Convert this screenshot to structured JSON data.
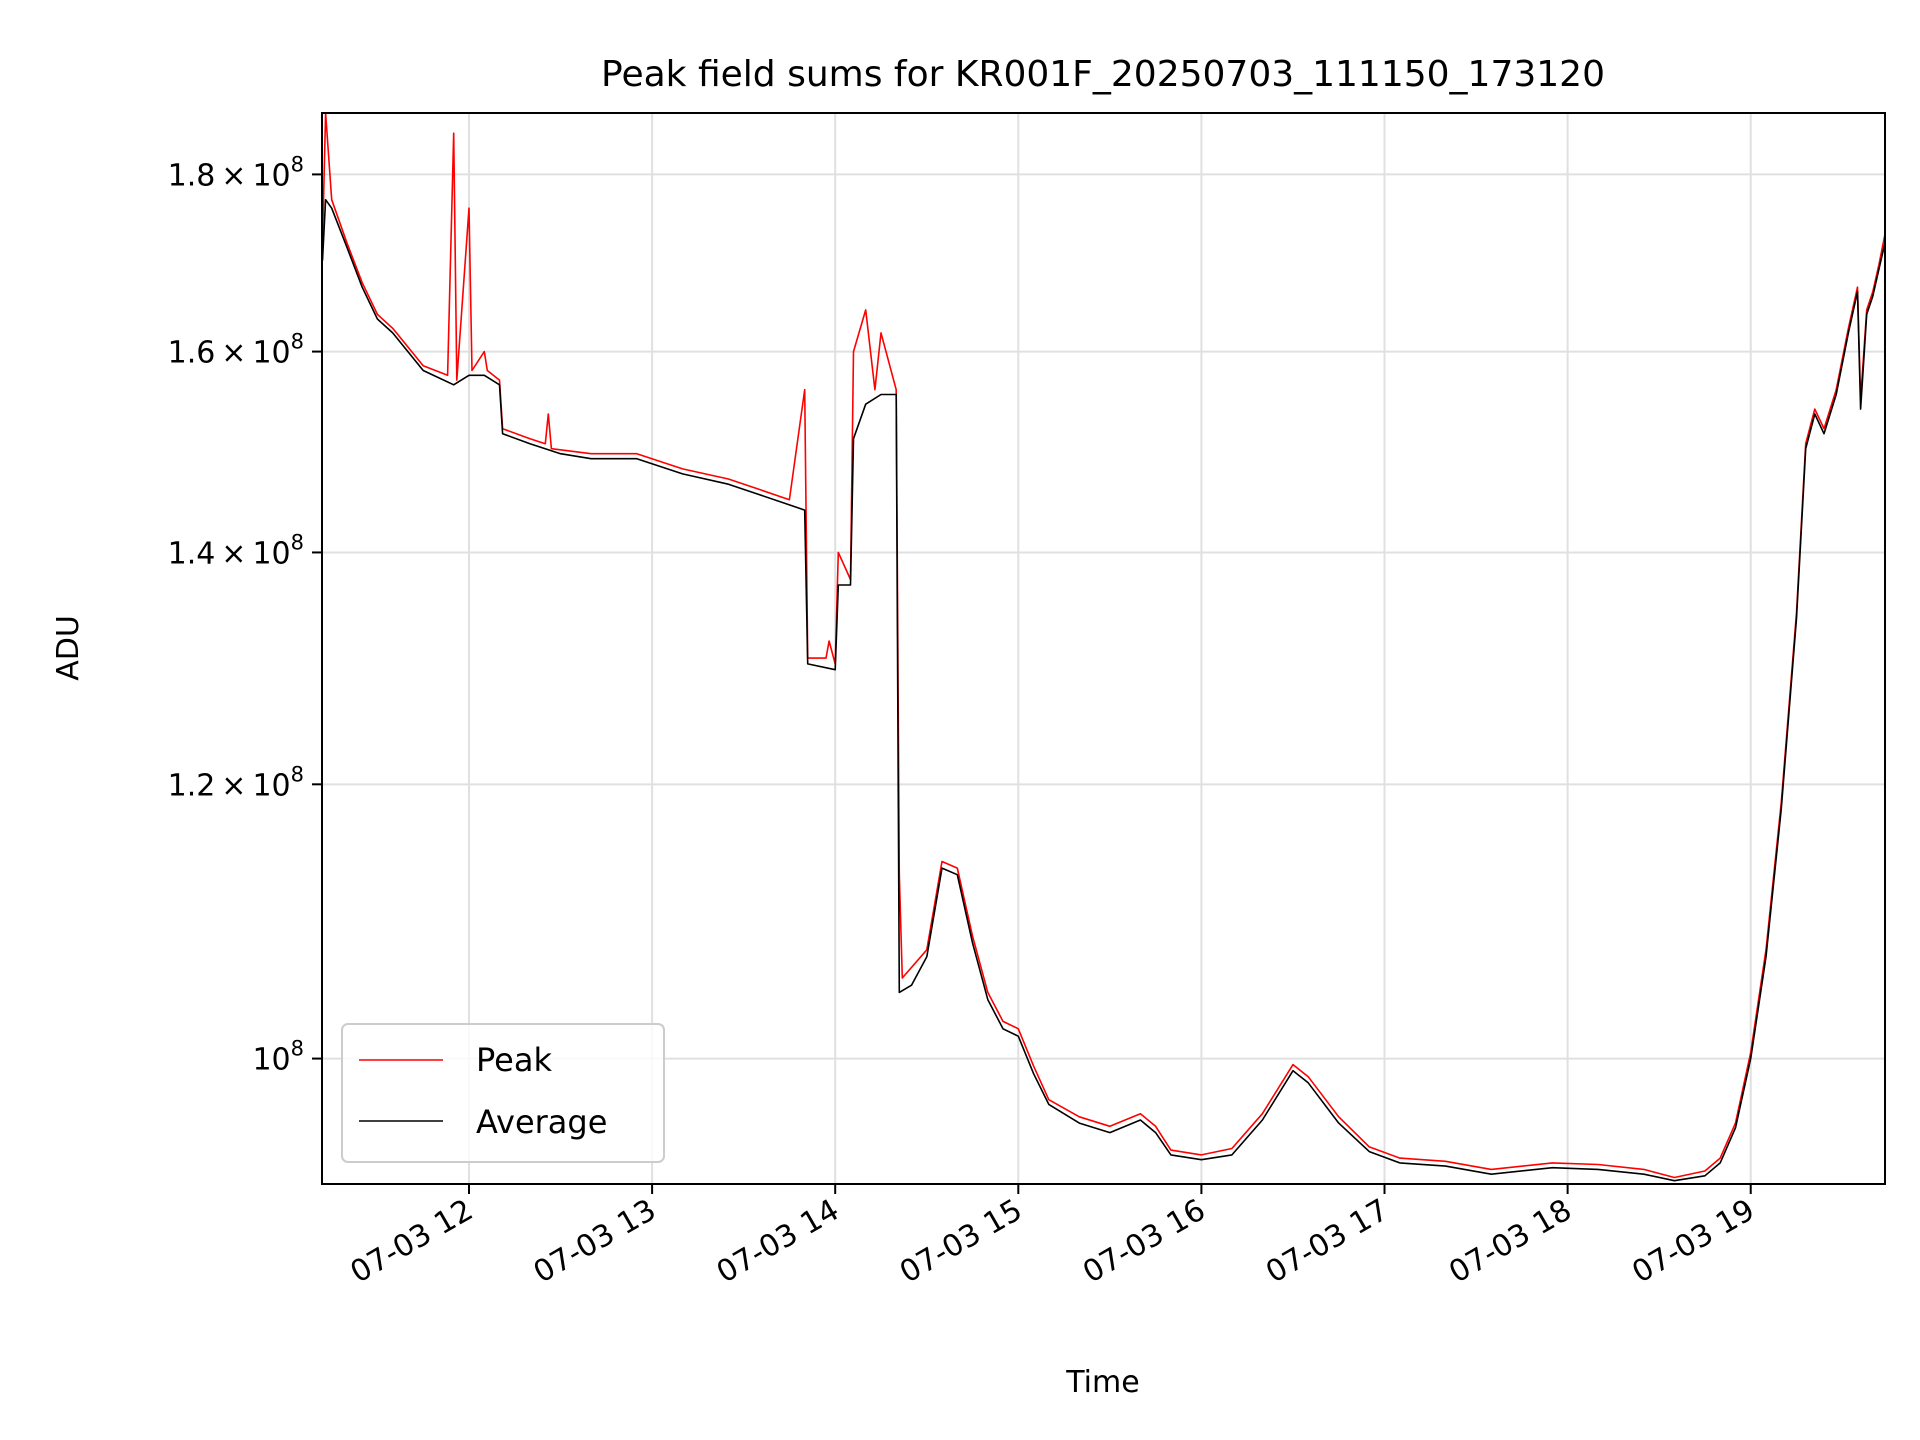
{
  "chart_data": {
    "type": "line",
    "title": "Peak field sums for KR001F_20250703_111150_173120",
    "xlabel": "Time",
    "ylabel": "ADU",
    "yscale": "log",
    "ylim": [
      92000000,
      187500000
    ],
    "xlim": [
      "07-03 11:11:50",
      "07-03 19:44:00"
    ],
    "grid": true,
    "legend_position": "lower-left",
    "x_ticks": [
      "07-03 12",
      "07-03 13",
      "07-03 14",
      "07-03 15",
      "07-03 16",
      "07-03 17",
      "07-03 18",
      "07-03 19"
    ],
    "y_ticks": [
      {
        "value": 100000000,
        "mantissa": "",
        "exponent": "8"
      },
      {
        "value": 120000000,
        "mantissa": "1.2",
        "exponent": "8"
      },
      {
        "value": 140000000,
        "mantissa": "1.4",
        "exponent": "8"
      },
      {
        "value": 160000000,
        "mantissa": "1.6",
        "exponent": "8"
      },
      {
        "value": 180000000,
        "mantissa": "1.8",
        "exponent": "8"
      }
    ],
    "series": [
      {
        "name": "Average",
        "color": "#000000",
        "points": [
          [
            "07-03 11:12",
            170
          ],
          [
            "07-03 11:13",
            177
          ],
          [
            "07-03 11:15",
            176
          ],
          [
            "07-03 11:20",
            171.5
          ],
          [
            "07-03 11:25",
            167
          ],
          [
            "07-03 11:30",
            163.5
          ],
          [
            "07-03 11:35",
            162
          ],
          [
            "07-03 11:45",
            158
          ],
          [
            "07-03 11:55",
            156.5
          ],
          [
            "07-03 12:00",
            157.5
          ],
          [
            "07-03 12:05",
            157.5
          ],
          [
            "07-03 12:10",
            156.5
          ],
          [
            "07-03 12:11",
            151.5
          ],
          [
            "07-03 12:20",
            150.5
          ],
          [
            "07-03 12:30",
            149.5
          ],
          [
            "07-03 12:40",
            149
          ],
          [
            "07-03 12:55",
            149
          ],
          [
            "07-03 13:10",
            147.5
          ],
          [
            "07-03 13:25",
            146.5
          ],
          [
            "07-03 13:35",
            145.5
          ],
          [
            "07-03 13:45",
            144.5
          ],
          [
            "07-03 13:50",
            144
          ],
          [
            "07-03 13:51",
            130
          ],
          [
            "07-03 14:00",
            129.5
          ],
          [
            "07-03 14:01",
            137
          ],
          [
            "07-03 14:05",
            137
          ],
          [
            "07-03 14:06",
            151
          ],
          [
            "07-03 14:10",
            154.5
          ],
          [
            "07-03 14:15",
            155.5
          ],
          [
            "07-03 14:20",
            155.5
          ],
          [
            "07-03 14:21",
            104.5
          ],
          [
            "07-03 14:25",
            105
          ],
          [
            "07-03 14:30",
            107
          ],
          [
            "07-03 14:35",
            113.5
          ],
          [
            "07-03 14:40",
            113
          ],
          [
            "07-03 14:45",
            108
          ],
          [
            "07-03 14:50",
            104
          ],
          [
            "07-03 14:55",
            102
          ],
          [
            "07-03 15:00",
            101.5
          ],
          [
            "07-03 15:05",
            99
          ],
          [
            "07-03 15:10",
            97
          ],
          [
            "07-03 15:20",
            95.8
          ],
          [
            "07-03 15:30",
            95.2
          ],
          [
            "07-03 15:40",
            96
          ],
          [
            "07-03 15:45",
            95.2
          ],
          [
            "07-03 15:50",
            93.8
          ],
          [
            "07-03 16:00",
            93.5
          ],
          [
            "07-03 16:10",
            93.8
          ],
          [
            "07-03 16:20",
            96
          ],
          [
            "07-03 16:30",
            99.2
          ],
          [
            "07-03 16:35",
            98.4
          ],
          [
            "07-03 16:45",
            95.8
          ],
          [
            "07-03 16:55",
            94
          ],
          [
            "07-03 17:05",
            93.3
          ],
          [
            "07-03 17:20",
            93.1
          ],
          [
            "07-03 17:35",
            92.6
          ],
          [
            "07-03 17:55",
            93
          ],
          [
            "07-03 18:10",
            92.9
          ],
          [
            "07-03 18:25",
            92.6
          ],
          [
            "07-03 18:35",
            92.2
          ],
          [
            "07-03 18:45",
            92.5
          ],
          [
            "07-03 18:50",
            93.3
          ],
          [
            "07-03 18:55",
            95.5
          ],
          [
            "07-03 19:00",
            100
          ],
          [
            "07-03 19:05",
            107
          ],
          [
            "07-03 19:10",
            118
          ],
          [
            "07-03 19:15",
            134
          ],
          [
            "07-03 19:18",
            150
          ],
          [
            "07-03 19:21",
            153.5
          ],
          [
            "07-03 19:24",
            151.5
          ],
          [
            "07-03 19:28",
            155.5
          ],
          [
            "07-03 19:32",
            162
          ],
          [
            "07-03 19:35",
            166.5
          ],
          [
            "07-03 19:36",
            154
          ],
          [
            "07-03 19:38",
            164
          ],
          [
            "07-03 19:40",
            166
          ],
          [
            "07-03 19:42",
            169
          ],
          [
            "07-03 19:44",
            172
          ]
        ]
      },
      {
        "name": "Peak",
        "color": "#ff0000",
        "points": [
          [
            "07-03 11:12",
            172
          ],
          [
            "07-03 11:13",
            187.5
          ],
          [
            "07-03 11:15",
            177
          ],
          [
            "07-03 11:20",
            172
          ],
          [
            "07-03 11:25",
            167.5
          ],
          [
            "07-03 11:30",
            164
          ],
          [
            "07-03 11:35",
            162.5
          ],
          [
            "07-03 11:45",
            158.5
          ],
          [
            "07-03 11:53",
            157.5
          ],
          [
            "07-03 11:55",
            185
          ],
          [
            "07-03 11:56",
            157
          ],
          [
            "07-03 12:00",
            176
          ],
          [
            "07-03 12:01",
            158
          ],
          [
            "07-03 12:05",
            160
          ],
          [
            "07-03 12:06",
            158
          ],
          [
            "07-03 12:10",
            157
          ],
          [
            "07-03 12:11",
            152
          ],
          [
            "07-03 12:20",
            151
          ],
          [
            "07-03 12:25",
            150.5
          ],
          [
            "07-03 12:26",
            153.5
          ],
          [
            "07-03 12:27",
            150
          ],
          [
            "07-03 12:40",
            149.5
          ],
          [
            "07-03 12:55",
            149.5
          ],
          [
            "07-03 13:10",
            148
          ],
          [
            "07-03 13:25",
            147
          ],
          [
            "07-03 13:35",
            146
          ],
          [
            "07-03 13:45",
            145
          ],
          [
            "07-03 13:50",
            156
          ],
          [
            "07-03 13:51",
            130.5
          ],
          [
            "07-03 13:57",
            130.5
          ],
          [
            "07-03 13:58",
            132
          ],
          [
            "07-03 14:00",
            130
          ],
          [
            "07-03 14:01",
            140
          ],
          [
            "07-03 14:05",
            137.5
          ],
          [
            "07-03 14:06",
            160
          ],
          [
            "07-03 14:10",
            164.5
          ],
          [
            "07-03 14:13",
            156
          ],
          [
            "07-03 14:15",
            162
          ],
          [
            "07-03 14:20",
            156
          ],
          [
            "07-03 14:21",
            113
          ],
          [
            "07-03 14:22",
            105.5
          ],
          [
            "07-03 14:30",
            107.5
          ],
          [
            "07-03 14:35",
            114
          ],
          [
            "07-03 14:40",
            113.5
          ],
          [
            "07-03 14:45",
            108.5
          ],
          [
            "07-03 14:50",
            104.5
          ],
          [
            "07-03 14:55",
            102.5
          ],
          [
            "07-03 15:00",
            102
          ],
          [
            "07-03 15:05",
            99.5
          ],
          [
            "07-03 15:10",
            97.3
          ],
          [
            "07-03 15:20",
            96.2
          ],
          [
            "07-03 15:30",
            95.6
          ],
          [
            "07-03 15:40",
            96.4
          ],
          [
            "07-03 15:45",
            95.6
          ],
          [
            "07-03 15:50",
            94.1
          ],
          [
            "07-03 16:00",
            93.8
          ],
          [
            "07-03 16:10",
            94.2
          ],
          [
            "07-03 16:20",
            96.4
          ],
          [
            "07-03 16:30",
            99.6
          ],
          [
            "07-03 16:35",
            98.8
          ],
          [
            "07-03 16:45",
            96.2
          ],
          [
            "07-03 16:55",
            94.3
          ],
          [
            "07-03 17:05",
            93.6
          ],
          [
            "07-03 17:20",
            93.4
          ],
          [
            "07-03 17:35",
            92.9
          ],
          [
            "07-03 17:55",
            93.3
          ],
          [
            "07-03 18:10",
            93.2
          ],
          [
            "07-03 18:25",
            92.9
          ],
          [
            "07-03 18:35",
            92.4
          ],
          [
            "07-03 18:45",
            92.8
          ],
          [
            "07-03 18:50",
            93.6
          ],
          [
            "07-03 18:55",
            95.8
          ],
          [
            "07-03 19:00",
            100.4
          ],
          [
            "07-03 19:05",
            107.5
          ],
          [
            "07-03 19:10",
            118.5
          ],
          [
            "07-03 19:15",
            134.5
          ],
          [
            "07-03 19:18",
            150.5
          ],
          [
            "07-03 19:21",
            154
          ],
          [
            "07-03 19:24",
            152
          ],
          [
            "07-03 19:28",
            156
          ],
          [
            "07-03 19:32",
            162.5
          ],
          [
            "07-03 19:35",
            167
          ],
          [
            "07-03 19:36",
            155
          ],
          [
            "07-03 19:38",
            164.5
          ],
          [
            "07-03 19:40",
            166.5
          ],
          [
            "07-03 19:42",
            169.5
          ],
          [
            "07-03 19:44",
            173
          ]
        ]
      }
    ],
    "value_unit_in_points": "1e6 ADU",
    "legend_entries": [
      "Peak",
      "Average"
    ]
  }
}
